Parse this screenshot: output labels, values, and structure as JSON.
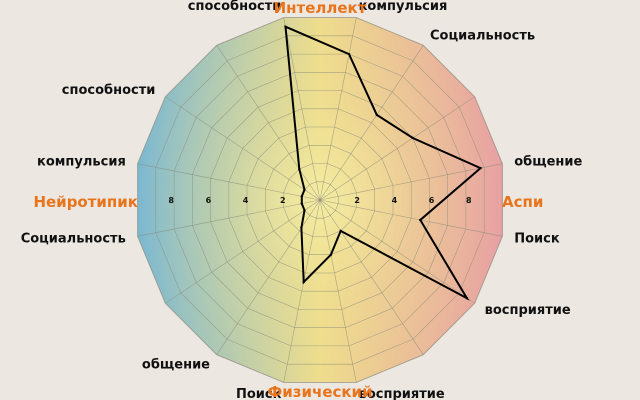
{
  "colors": {
    "background": "#ece7e1",
    "left": "#7bb8d2",
    "center": "#eedd8c",
    "right": "#e7a0a3",
    "grid": "#8a8a7a",
    "series_line": "#000000",
    "category_text": "#e8741c"
  },
  "chart_data": {
    "type": "radar",
    "title": "",
    "category_labels": {
      "top": "Интеллект",
      "bottom": "Физический",
      "left": "Нейротипик",
      "right": "Аспи"
    },
    "axes": [
      "способности",
      "компульсия",
      "Социальность",
      "Аспи",
      "общение",
      "Поиск",
      "восприятие",
      "Физический",
      "восприятие",
      "Поиск",
      "общение",
      "Нейротипик",
      "Социальность",
      "компульсия",
      "способности",
      "Интеллект"
    ],
    "tick_labels": [
      "2",
      "4",
      "6",
      "8"
    ],
    "rlim": [
      0,
      10
    ],
    "grid": true,
    "series": [
      {
        "values": [
          9.5,
          8.0,
          5.5,
          6.0,
          8.8,
          5.5,
          9.5,
          2.0,
          3.0,
          4.5,
          1.8,
          1.0,
          1.0,
          1.0,
          1.0,
          2.0
        ]
      }
    ]
  }
}
